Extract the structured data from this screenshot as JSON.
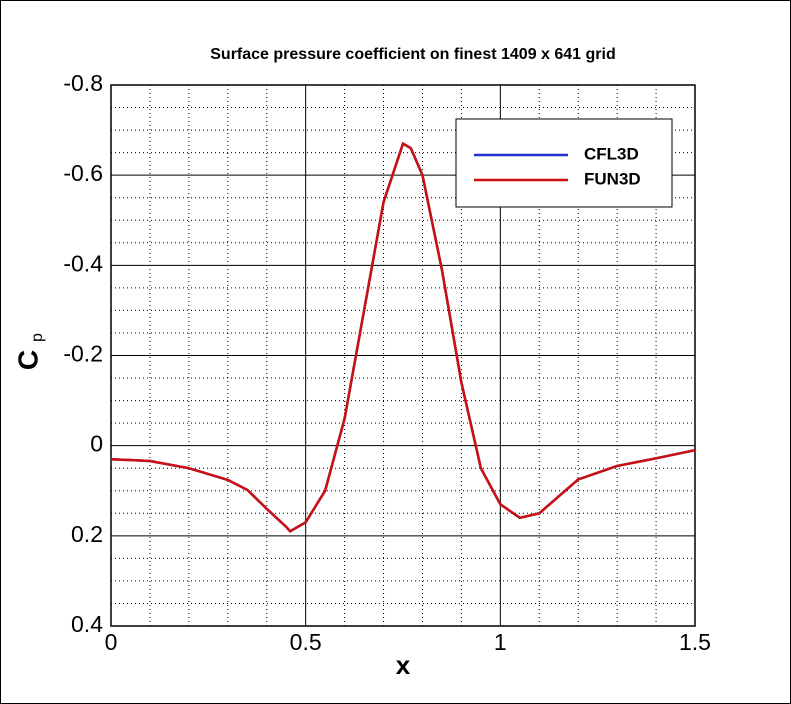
{
  "chart_data": {
    "type": "line",
    "title": "Surface pressure coefficient on finest 1409 x 641 grid",
    "x_label": "x",
    "y_label": "C",
    "y_label_subscript": "p",
    "x": [
      0,
      0.1,
      0.2,
      0.3,
      0.35,
      0.4,
      0.45,
      0.46,
      0.5,
      0.55,
      0.6,
      0.65,
      0.7,
      0.75,
      0.77,
      0.8,
      0.85,
      0.9,
      0.95,
      1.0,
      1.05,
      1.1,
      1.2,
      1.3,
      1.4,
      1.5
    ],
    "series": [
      {
        "name": "CFL3D",
        "color": "#2030d0",
        "values": [
          0.03,
          0.034,
          0.05,
          0.076,
          0.098,
          0.14,
          0.18,
          0.19,
          0.17,
          0.1,
          -0.06,
          -0.3,
          -0.54,
          -0.67,
          -0.66,
          -0.6,
          -0.39,
          -0.14,
          0.05,
          0.13,
          0.16,
          0.15,
          0.075,
          0.045,
          0.028,
          0.01
        ]
      },
      {
        "name": "FUN3D",
        "color": "#cc1010",
        "values": [
          0.03,
          0.034,
          0.05,
          0.076,
          0.098,
          0.14,
          0.18,
          0.19,
          0.17,
          0.1,
          -0.06,
          -0.3,
          -0.54,
          -0.67,
          -0.66,
          -0.6,
          -0.39,
          -0.14,
          0.05,
          0.13,
          0.16,
          0.15,
          0.075,
          0.045,
          0.028,
          0.01
        ]
      }
    ],
    "xlim": [
      0,
      1.5
    ],
    "ylim": [
      0.4,
      -0.8
    ],
    "xticks": [
      0,
      0.5,
      1,
      1.5
    ],
    "yticks": [
      -0.8,
      -0.6,
      -0.4,
      -0.2,
      0,
      0.2,
      0.4
    ],
    "minor_xticks": [
      0.1,
      0.2,
      0.3,
      0.4,
      0.6,
      0.7,
      0.8,
      0.9,
      1.1,
      1.2,
      1.3,
      1.4
    ],
    "minor_yticks": [
      -0.75,
      -0.7,
      -0.65,
      -0.55,
      -0.5,
      -0.45,
      -0.35,
      -0.3,
      -0.25,
      -0.15,
      -0.1,
      -0.05,
      0.05,
      0.1,
      0.15,
      0.25,
      0.3,
      0.35
    ],
    "grid": true,
    "legend": "top-right"
  }
}
